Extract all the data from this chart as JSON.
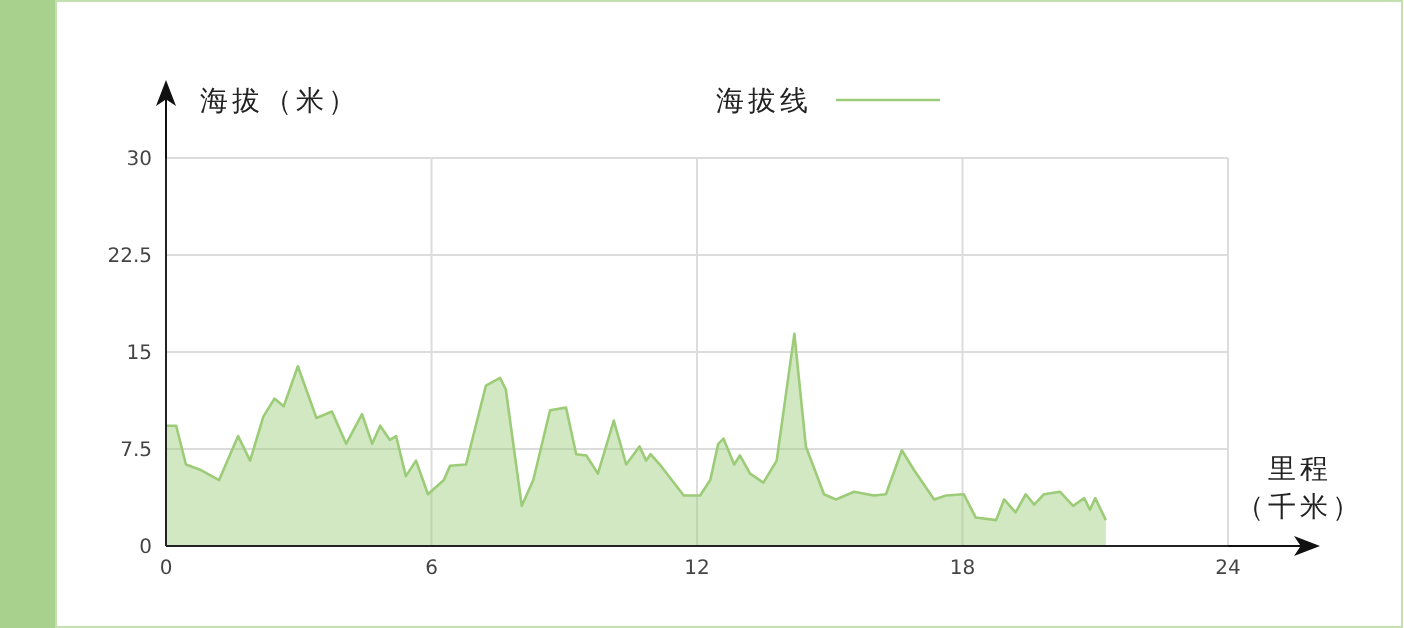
{
  "chart_data": {
    "type": "area",
    "ylabel": "海拔（米）",
    "xlabel": "里程（千米）",
    "x": [
      0,
      0.23,
      0.45,
      0.77,
      1.2,
      1.63,
      1.9,
      2.2,
      2.45,
      2.66,
      2.98,
      3.4,
      3.75,
      4.07,
      4.43,
      4.66,
      4.84,
      5.06,
      5.2,
      5.42,
      5.65,
      5.92,
      6.28,
      6.42,
      6.78,
      7.23,
      7.55,
      7.68,
      8.04,
      8.3,
      8.68,
      9.04,
      9.27,
      9.5,
      9.76,
      10.12,
      10.4,
      10.7,
      10.85,
      10.95,
      11.16,
      11.7,
      12.07,
      12.3,
      12.48,
      12.6,
      12.84,
      12.97,
      13.2,
      13.5,
      13.8,
      14.2,
      14.46,
      14.87,
      15.14,
      15.55,
      16.0,
      16.27,
      16.63,
      16.9,
      17.36,
      17.63,
      18.03,
      18.3,
      18.76,
      18.94,
      19.2,
      19.43,
      19.62,
      19.84,
      20.2,
      20.5,
      20.75,
      20.88,
      21.0,
      21.24
    ],
    "series": [
      {
        "name": "海拔线",
        "color": "#9ccc78",
        "values": [
          9.3,
          9.3,
          6.3,
          5.9,
          5.1,
          8.5,
          6.6,
          10.0,
          11.4,
          10.8,
          13.9,
          9.9,
          10.4,
          7.9,
          10.2,
          7.9,
          9.3,
          8.2,
          8.5,
          5.4,
          6.6,
          4.0,
          5.1,
          6.2,
          6.3,
          12.4,
          13.0,
          12.1,
          3.1,
          5.1,
          10.5,
          10.7,
          7.1,
          7.0,
          5.6,
          9.7,
          6.3,
          7.7,
          6.6,
          7.1,
          6.3,
          3.9,
          3.9,
          5.1,
          7.9,
          8.3,
          6.3,
          7.0,
          5.6,
          4.9,
          6.6,
          16.4,
          7.7,
          4.0,
          3.6,
          4.2,
          3.9,
          4.0,
          7.4,
          5.9,
          3.6,
          3.9,
          4.0,
          2.2,
          2.0,
          3.6,
          2.6,
          4.0,
          3.2,
          4.0,
          4.2,
          3.1,
          3.7,
          2.8,
          3.7,
          2.0
        ]
      }
    ],
    "xlim": [
      0,
      24
    ],
    "ylim": [
      0,
      30
    ],
    "xticks": [
      0,
      6,
      12,
      18,
      24
    ],
    "yticks": [
      0,
      7.5,
      15,
      22.5,
      30
    ],
    "grid": true,
    "legend": "top"
  }
}
